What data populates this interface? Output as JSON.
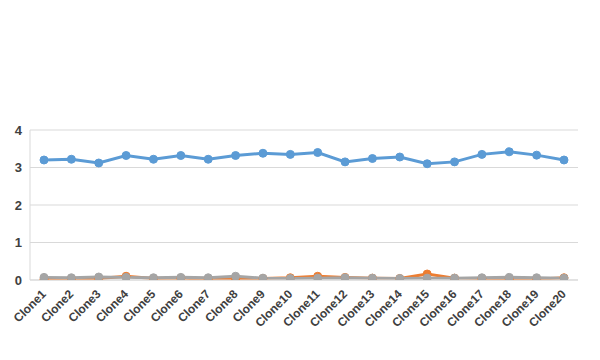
{
  "chart_data": {
    "type": "line",
    "categories": [
      "Clone1",
      "Clone2",
      "Clone3",
      "Clone4",
      "Clone5",
      "Clone6",
      "Clone7",
      "Clone8",
      "Clone9",
      "Clone10",
      "Clone11",
      "Clone12",
      "Clone13",
      "Clone14",
      "Clone15",
      "Clone16",
      "Clone17",
      "Clone18",
      "Clone19",
      "Clone20"
    ],
    "series": [
      {
        "color": "#5B9BD5",
        "marker": "circle",
        "values": [
          3.2,
          3.22,
          3.12,
          3.32,
          3.22,
          3.32,
          3.22,
          3.32,
          3.38,
          3.35,
          3.4,
          3.15,
          3.24,
          3.28,
          3.1,
          3.15,
          3.35,
          3.42,
          3.33,
          3.2
        ]
      },
      {
        "color": "#ED7D31",
        "marker": "circle",
        "values": [
          0.02,
          0.03,
          0.04,
          0.1,
          0.04,
          0.05,
          0.02,
          0.03,
          0.04,
          0.06,
          0.1,
          0.07,
          0.05,
          0.04,
          0.16,
          0.05,
          0.04,
          0.03,
          0.02,
          0.06
        ]
      },
      {
        "color": "#A5A5A5",
        "marker": "circle",
        "values": [
          0.07,
          0.06,
          0.08,
          0.07,
          0.06,
          0.07,
          0.06,
          0.1,
          0.05,
          0.04,
          0.05,
          0.06,
          0.05,
          0.04,
          0.05,
          0.05,
          0.06,
          0.07,
          0.06,
          0.05
        ]
      }
    ],
    "ylim": [
      0,
      4
    ],
    "yticks": [
      0,
      1,
      2,
      3,
      4
    ],
    "grid": true
  }
}
